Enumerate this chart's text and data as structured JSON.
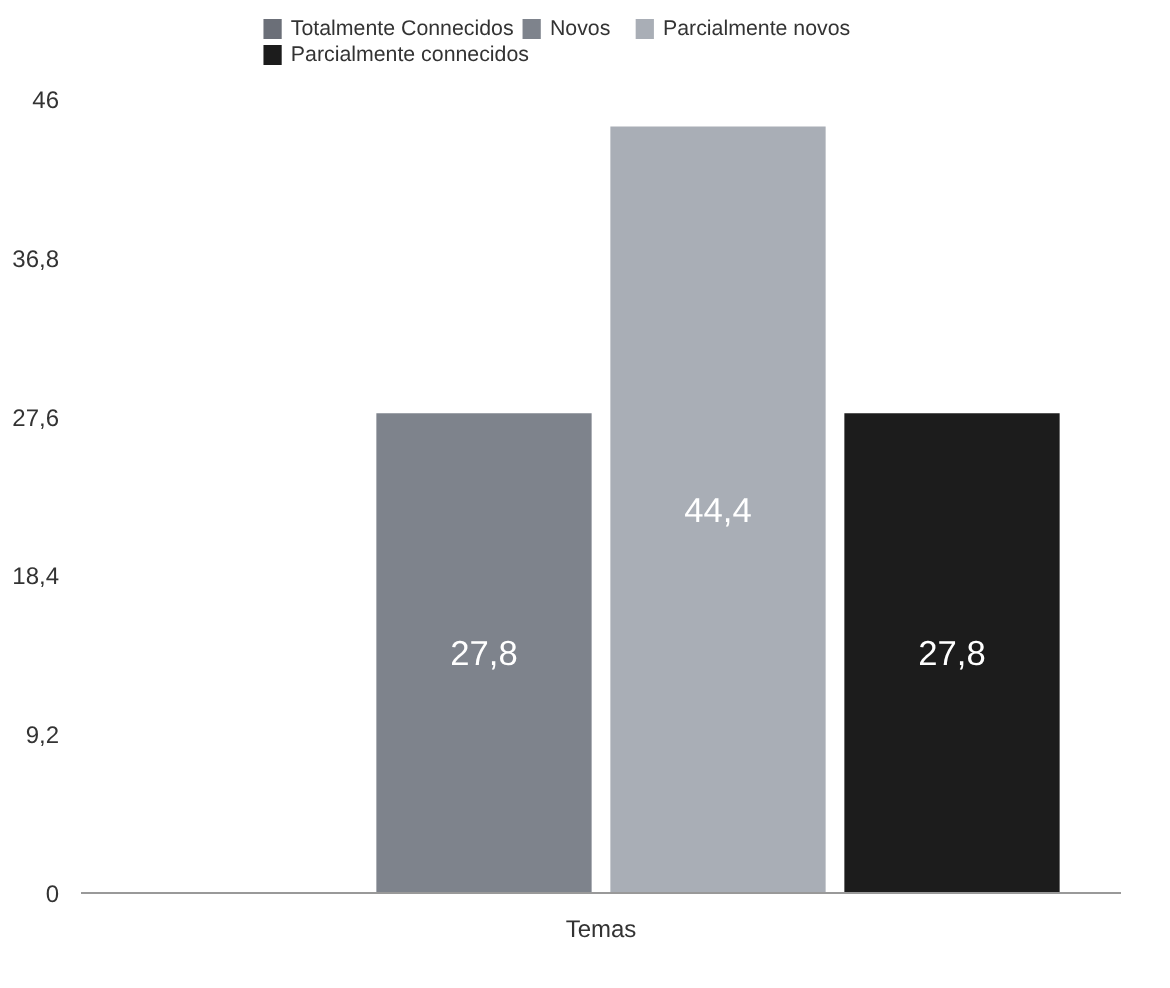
{
  "chart_data": {
    "type": "bar",
    "categories": [
      "Temas"
    ],
    "series": [
      {
        "name": "Totalmente Connecidos",
        "color": "#6b6f78",
        "values": [
          0
        ],
        "value_labels": [
          null
        ]
      },
      {
        "name": "Novos",
        "color": "#7e838c",
        "values": [
          27.8
        ],
        "value_labels": [
          "27,8"
        ]
      },
      {
        "name": "Parcialmente novos",
        "color": "#a9aeb6",
        "values": [
          44.4
        ],
        "value_labels": [
          "44,4"
        ]
      },
      {
        "name": "Parcialmente connecidos",
        "color": "#1c1c1c",
        "values": [
          27.8
        ],
        "value_labels": [
          "27,8"
        ]
      }
    ],
    "ylim": [
      0,
      46
    ],
    "yticks": [
      0,
      {
        "value": 9.2,
        "label": "9,2"
      },
      {
        "value": 18.4,
        "label": "18,4"
      },
      {
        "value": 27.6,
        "label": "27,6"
      },
      {
        "value": 36.8,
        "label": "36,8"
      },
      46
    ],
    "grid": false,
    "legend": "top"
  }
}
